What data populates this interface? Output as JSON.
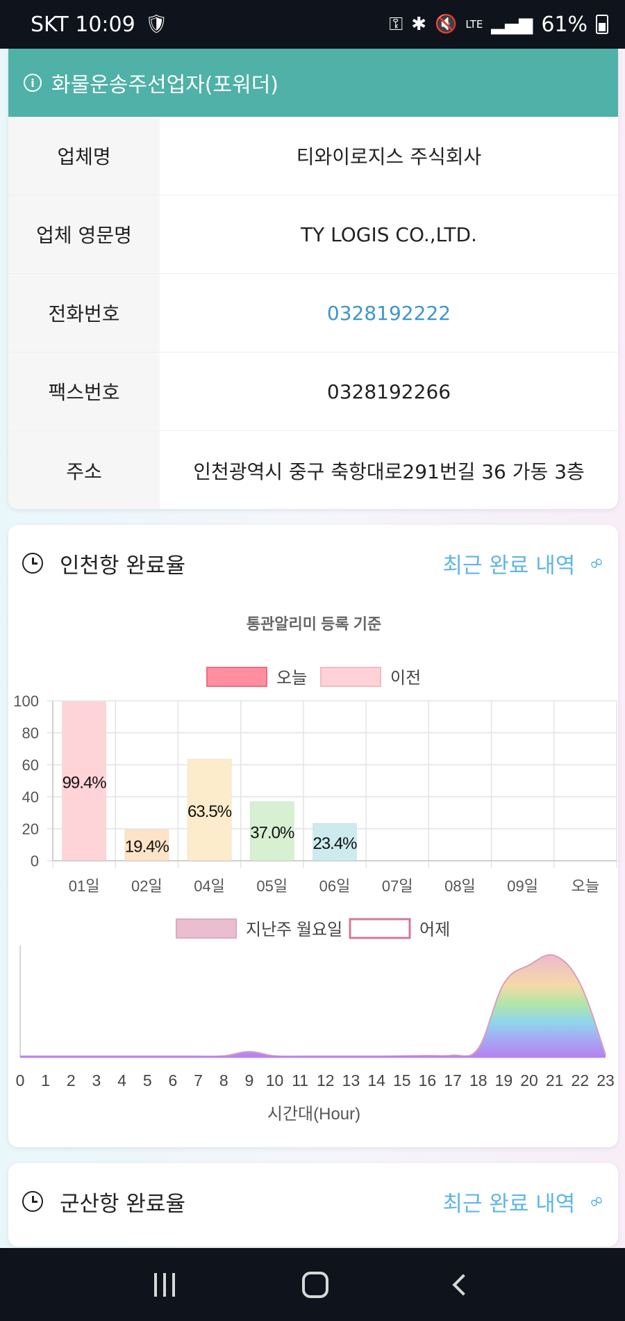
{
  "status_bar": {
    "carrier_time": "SKT 10:09",
    "network": "LTE",
    "battery": "61%",
    "icons": [
      "shield-icon",
      "key-icon",
      "bluetooth-icon",
      "mute-icon",
      "lte-icon",
      "signal-icon",
      "battery-icon"
    ]
  },
  "forwarder": {
    "title": "화물운송주선업자(포워더)",
    "rows": [
      {
        "label": "업체명",
        "value": "티와이로지스 주식회사"
      },
      {
        "label": "업체 영문명",
        "value": "TY LOGIS CO.,LTD."
      },
      {
        "label": "전화번호",
        "value": "0328192222"
      },
      {
        "label": "팩스번호",
        "value": "0328192266"
      },
      {
        "label": "주소",
        "value": "인천광역시 중구 축항대로291번길 36 가동 3층"
      }
    ]
  },
  "incheon": {
    "title": "인천항 완료율",
    "link": "최근 완료 내역"
  },
  "gunsan": {
    "title": "군산항 완료율",
    "link": "최근 완료 내역"
  },
  "chart_data": [
    {
      "type": "bar",
      "title": "통관알리미 등록 기준",
      "legend": [
        "오늘",
        "이전"
      ],
      "legend_colors": {
        "오늘": "#ff8f9f",
        "이전": "#ffd2d7"
      },
      "categories": [
        "01일",
        "02일",
        "04일",
        "05일",
        "06일",
        "07일",
        "08일",
        "09일",
        "오늘"
      ],
      "values": [
        99.4,
        19.4,
        63.5,
        37.0,
        23.4,
        null,
        null,
        null,
        null
      ],
      "labels": [
        "99.4%",
        "19.4%",
        "63.5%",
        "37.0%",
        "23.4%"
      ],
      "bar_colors": [
        "#ffd4d8",
        "#fde3c7",
        "#fdeccb",
        "#d8f0d2",
        "#cdebee"
      ],
      "yticks": [
        "0",
        "20",
        "40",
        "60",
        "80",
        "100"
      ],
      "ylim": [
        0,
        100
      ],
      "grid": true
    },
    {
      "type": "area",
      "legend": [
        "지난주 월요일",
        "어제"
      ],
      "legend_colors": {
        "지난주 월요일": "#e9bfd0",
        "어제": "#d17a98"
      },
      "xlabel": "시간대(Hour)",
      "x": [
        "0",
        "1",
        "2",
        "3",
        "4",
        "5",
        "6",
        "7",
        "8",
        "9",
        "10",
        "11",
        "12",
        "13",
        "14",
        "15",
        "16",
        "17",
        "18",
        "19",
        "20",
        "21",
        "22",
        "23"
      ],
      "values": [
        0.5,
        0.5,
        0.5,
        0.5,
        0.5,
        0.5,
        0.5,
        0.5,
        0.8,
        5,
        0.8,
        0.5,
        0.5,
        0.5,
        0.5,
        0.8,
        1.2,
        1.5,
        8,
        70,
        88,
        97,
        70,
        2
      ],
      "ylim": [
        0,
        100
      ]
    }
  ]
}
